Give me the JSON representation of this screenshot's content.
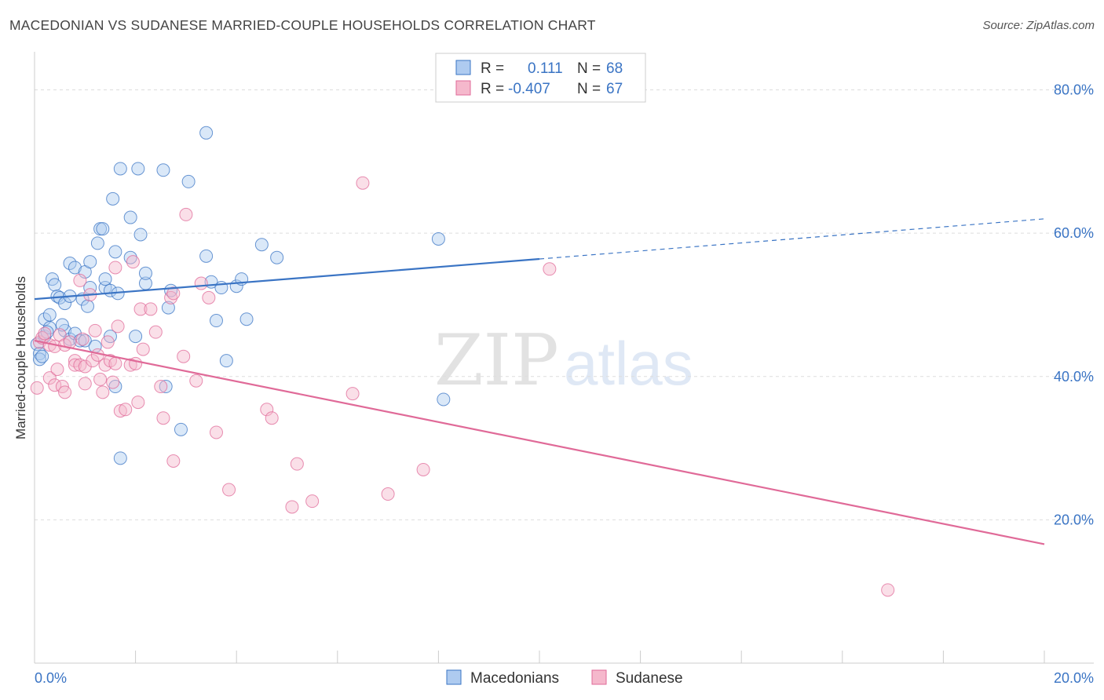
{
  "header": {
    "title": "MACEDONIAN VS SUDANESE MARRIED-COUPLE HOUSEHOLDS CORRELATION CHART",
    "source": "Source: ZipAtlas.com"
  },
  "watermark": {
    "zip": "ZIP",
    "atlas": "atlas"
  },
  "colors": {
    "blue": "#3a74c4",
    "blue_fill": "#aecbf0",
    "pink": "#e06a98",
    "pink_fill": "#f5b8cc"
  },
  "chart_data": {
    "type": "scatter",
    "title": "MACEDONIAN VS SUDANESE MARRIED-COUPLE HOUSEHOLDS CORRELATION CHART",
    "xlabel": "",
    "ylabel": "Married-couple Households",
    "xlim": [
      0,
      20
    ],
    "ylim": [
      0,
      84
    ],
    "x_tick_labels": [
      "0.0%",
      "20.0%"
    ],
    "y_ticks": [
      20,
      40,
      60,
      80
    ],
    "y_tick_labels": [
      "20.0%",
      "40.0%",
      "60.0%",
      "80.0%"
    ],
    "grid": true,
    "legend": {
      "placement": "top-center",
      "rows": [
        {
          "r_label": "R =",
          "r_value": "0.111",
          "n_label": "N =",
          "n_value": "68"
        },
        {
          "r_label": "R =",
          "r_value": "-0.407",
          "n_label": "N =",
          "n_value": "67"
        }
      ]
    },
    "bottom_legend": [
      "Macedonians",
      "Sudanese"
    ],
    "series": [
      {
        "name": "Macedonians",
        "color": "#3a74c4",
        "trend": {
          "x0": 0,
          "y0": 50.8,
          "x1": 10,
          "y1": 56.4,
          "dash_x1": 20,
          "dash_y1": 62.0
        },
        "points": [
          [
            0.05,
            44.5
          ],
          [
            0.1,
            43.2
          ],
          [
            0.1,
            42.4
          ],
          [
            0.2,
            48.0
          ],
          [
            0.2,
            45.6
          ],
          [
            0.3,
            48.6
          ],
          [
            0.3,
            46.8
          ],
          [
            0.35,
            53.6
          ],
          [
            0.4,
            52.8
          ],
          [
            0.45,
            51.2
          ],
          [
            0.5,
            51.0
          ],
          [
            0.6,
            46.4
          ],
          [
            0.6,
            50.2
          ],
          [
            0.7,
            55.8
          ],
          [
            0.7,
            51.2
          ],
          [
            0.7,
            45.2
          ],
          [
            0.8,
            46.0
          ],
          [
            0.8,
            55.2
          ],
          [
            0.9,
            45.0
          ],
          [
            0.95,
            50.8
          ],
          [
            1.0,
            54.6
          ],
          [
            1.0,
            45.0
          ],
          [
            1.05,
            49.8
          ],
          [
            1.1,
            56.0
          ],
          [
            1.1,
            52.4
          ],
          [
            1.2,
            44.2
          ],
          [
            1.25,
            58.6
          ],
          [
            1.3,
            60.6
          ],
          [
            1.35,
            60.6
          ],
          [
            1.4,
            52.4
          ],
          [
            1.4,
            53.6
          ],
          [
            1.5,
            52.0
          ],
          [
            1.5,
            45.6
          ],
          [
            1.55,
            64.8
          ],
          [
            1.6,
            38.6
          ],
          [
            1.6,
            57.4
          ],
          [
            1.65,
            51.6
          ],
          [
            1.7,
            28.6
          ],
          [
            1.7,
            69.0
          ],
          [
            1.9,
            56.6
          ],
          [
            1.9,
            62.2
          ],
          [
            2.0,
            45.6
          ],
          [
            2.05,
            69.0
          ],
          [
            2.1,
            59.8
          ],
          [
            2.2,
            53.0
          ],
          [
            2.2,
            54.4
          ],
          [
            2.55,
            68.8
          ],
          [
            2.6,
            38.6
          ],
          [
            2.65,
            49.6
          ],
          [
            2.7,
            52.0
          ],
          [
            2.9,
            32.6
          ],
          [
            3.05,
            67.2
          ],
          [
            3.4,
            56.8
          ],
          [
            3.4,
            74.0
          ],
          [
            3.5,
            53.2
          ],
          [
            3.6,
            47.8
          ],
          [
            3.7,
            52.4
          ],
          [
            3.8,
            42.2
          ],
          [
            4.0,
            52.6
          ],
          [
            4.1,
            53.6
          ],
          [
            4.2,
            48.0
          ],
          [
            4.5,
            58.4
          ],
          [
            4.8,
            56.6
          ],
          [
            8.0,
            59.2
          ],
          [
            8.1,
            36.8
          ],
          [
            0.15,
            42.8
          ],
          [
            0.25,
            46.2
          ],
          [
            0.55,
            47.2
          ]
        ]
      },
      {
        "name": "Sudanese",
        "color": "#e06a98",
        "trend": {
          "x0": 0,
          "y0": 45.0,
          "x1": 20,
          "y1": 16.6
        },
        "points": [
          [
            0.05,
            38.4
          ],
          [
            0.1,
            44.8
          ],
          [
            0.15,
            45.4
          ],
          [
            0.2,
            46.0
          ],
          [
            0.3,
            44.4
          ],
          [
            0.3,
            39.8
          ],
          [
            0.4,
            44.2
          ],
          [
            0.4,
            38.8
          ],
          [
            0.5,
            45.8
          ],
          [
            0.55,
            38.6
          ],
          [
            0.6,
            37.8
          ],
          [
            0.6,
            44.4
          ],
          [
            0.7,
            44.8
          ],
          [
            0.8,
            42.2
          ],
          [
            0.8,
            41.6
          ],
          [
            0.9,
            41.6
          ],
          [
            0.9,
            53.4
          ],
          [
            0.95,
            45.2
          ],
          [
            1.0,
            41.4
          ],
          [
            1.0,
            39.0
          ],
          [
            1.1,
            51.4
          ],
          [
            1.15,
            42.2
          ],
          [
            1.2,
            46.4
          ],
          [
            1.25,
            43.0
          ],
          [
            1.3,
            39.6
          ],
          [
            1.35,
            37.8
          ],
          [
            1.4,
            41.6
          ],
          [
            1.45,
            44.8
          ],
          [
            1.5,
            42.2
          ],
          [
            1.55,
            39.2
          ],
          [
            1.6,
            41.8
          ],
          [
            1.6,
            55.2
          ],
          [
            1.65,
            47.0
          ],
          [
            1.7,
            35.2
          ],
          [
            1.8,
            35.4
          ],
          [
            1.9,
            41.6
          ],
          [
            1.95,
            56.0
          ],
          [
            2.0,
            41.8
          ],
          [
            2.05,
            36.4
          ],
          [
            2.1,
            49.4
          ],
          [
            2.15,
            43.8
          ],
          [
            2.3,
            49.4
          ],
          [
            2.4,
            46.2
          ],
          [
            2.5,
            38.6
          ],
          [
            2.55,
            34.2
          ],
          [
            2.7,
            51.0
          ],
          [
            2.75,
            28.2
          ],
          [
            2.75,
            51.6
          ],
          [
            2.95,
            42.8
          ],
          [
            3.0,
            62.6
          ],
          [
            3.2,
            39.4
          ],
          [
            3.3,
            53.0
          ],
          [
            3.45,
            51.0
          ],
          [
            3.6,
            32.2
          ],
          [
            3.85,
            24.2
          ],
          [
            4.6,
            35.4
          ],
          [
            4.7,
            34.2
          ],
          [
            5.1,
            21.8
          ],
          [
            5.2,
            27.8
          ],
          [
            5.5,
            22.6
          ],
          [
            6.3,
            37.6
          ],
          [
            6.5,
            67.0
          ],
          [
            7.0,
            23.6
          ],
          [
            7.7,
            27.0
          ],
          [
            10.2,
            55.0
          ],
          [
            16.9,
            10.2
          ],
          [
            0.45,
            41.0
          ]
        ]
      }
    ]
  }
}
